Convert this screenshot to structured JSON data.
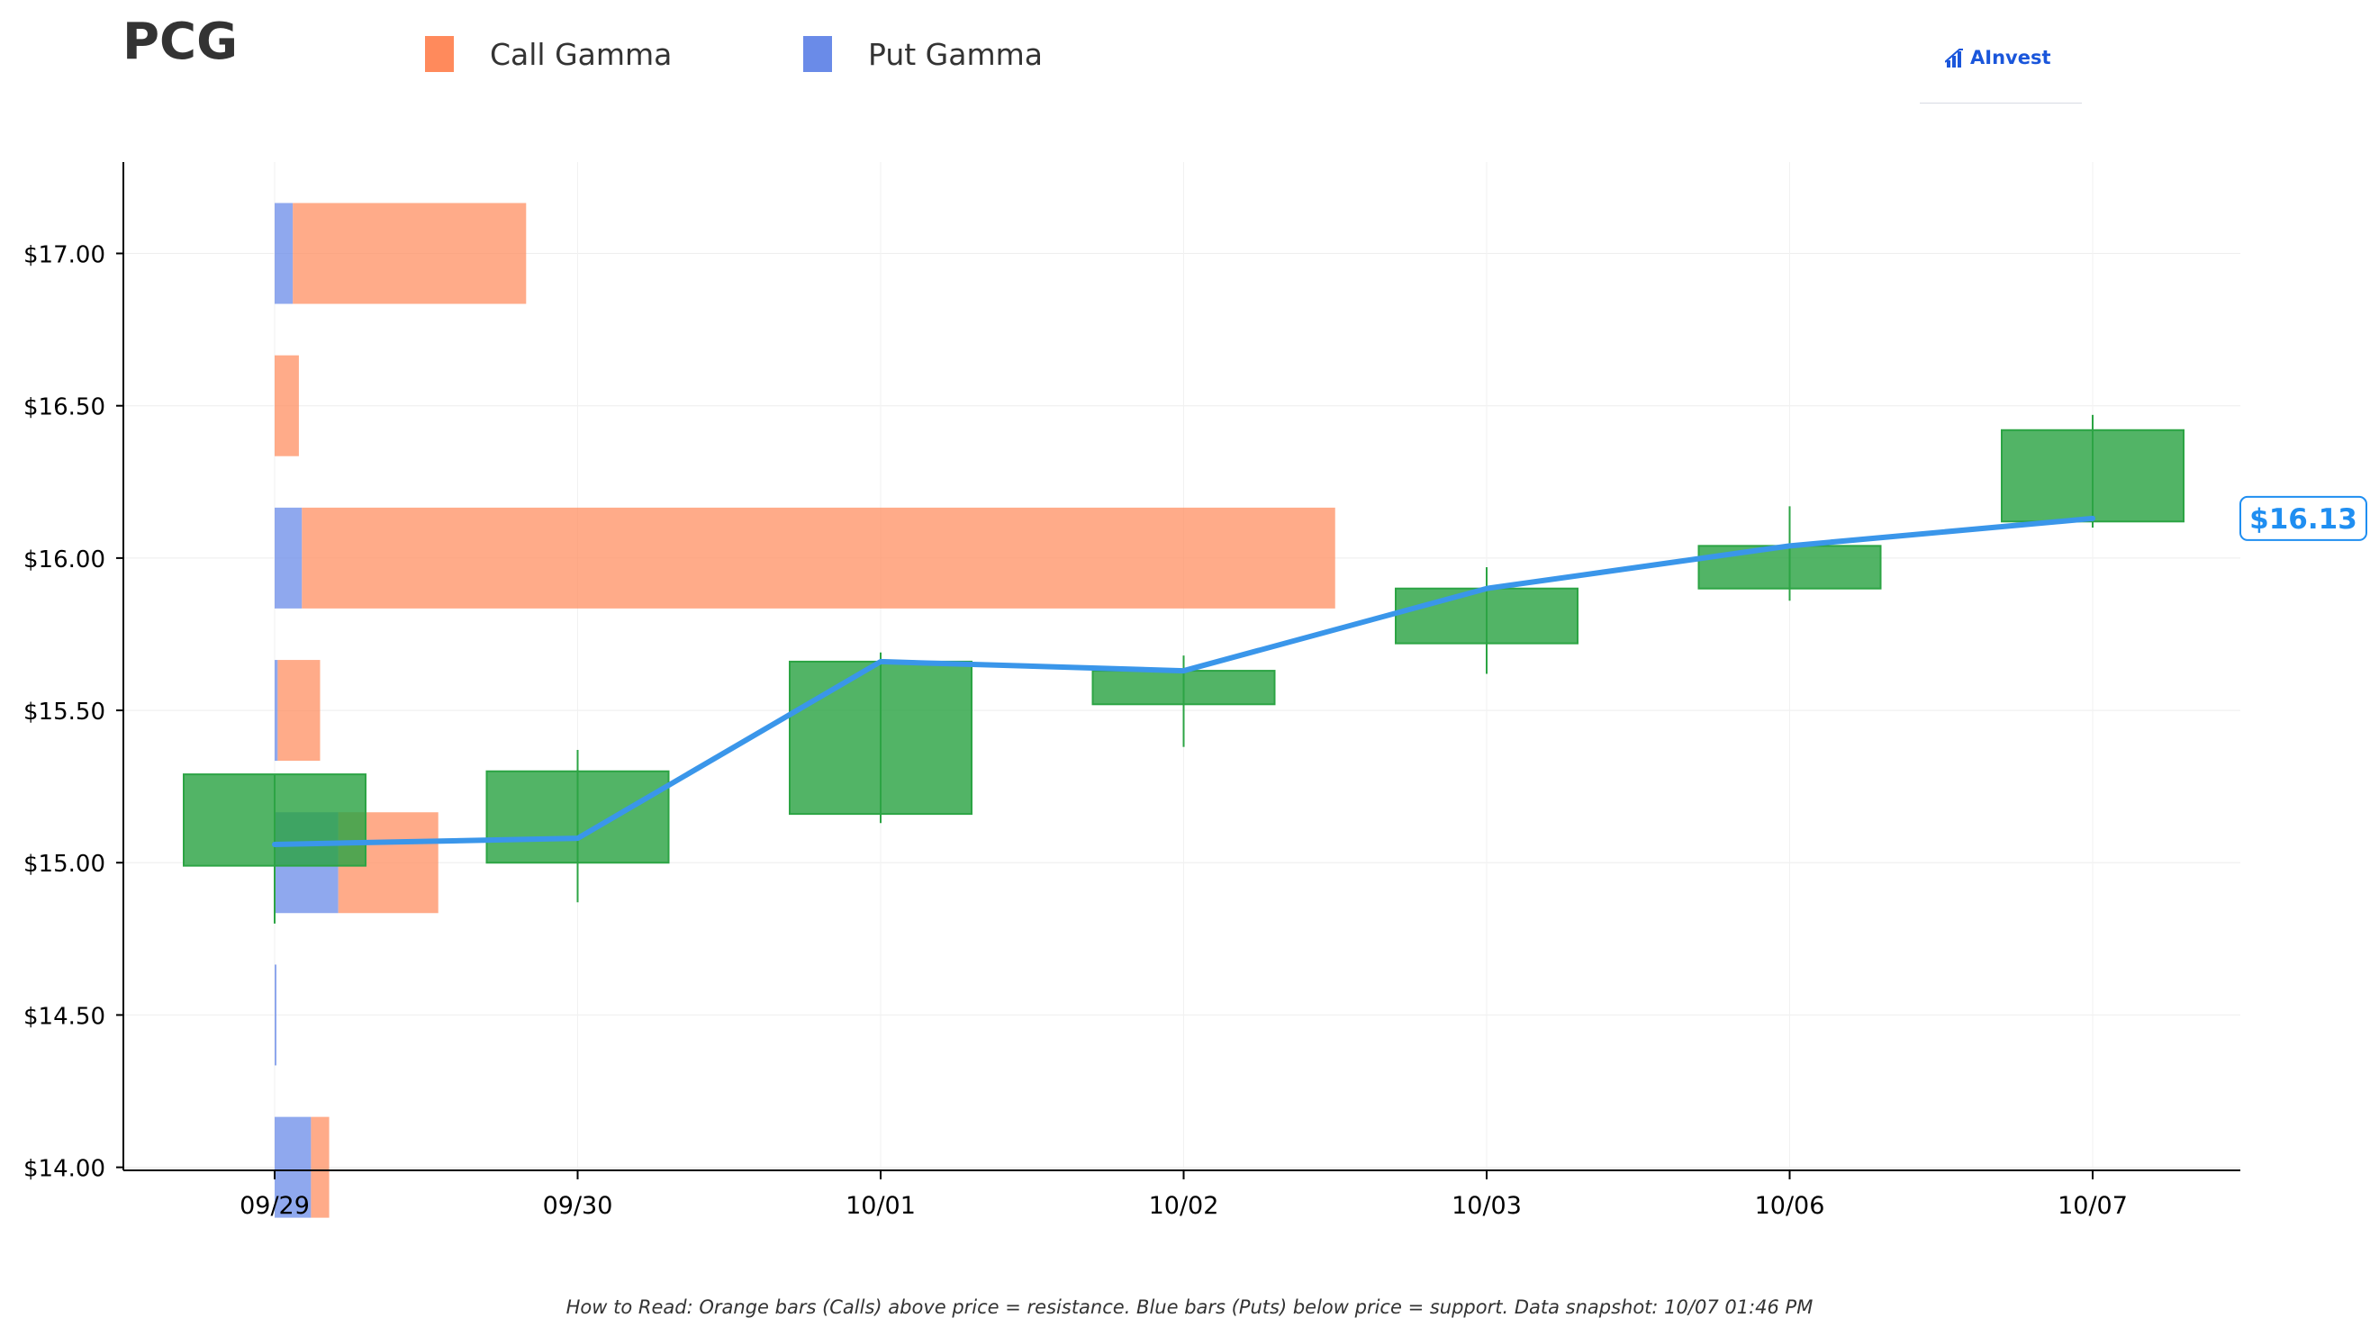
{
  "header": {
    "ticker": "PCG",
    "brand": "AInvest"
  },
  "legend": [
    {
      "label": "Call Gamma",
      "color": "#ff8a5c"
    },
    {
      "label": "Put Gamma",
      "color": "#6a8be8"
    }
  ],
  "footnote": "How to Read: Orange bars (Calls) above price = resistance. Blue bars (Puts) below price = support. Data snapshot: 10/07 01:46 PM",
  "colors": {
    "call": "#ff8a5c",
    "put": "#6a8be8",
    "candle": "#2ca444",
    "price_line": "#3a96ea",
    "price_tag": "#1f8ef1"
  },
  "chart_data": {
    "type": "candlestick",
    "categories": [
      "09/29",
      "09/30",
      "10/01",
      "10/02",
      "10/03",
      "10/06",
      "10/07"
    ],
    "ylim": [
      13.99,
      17.3
    ],
    "yticks": [
      14.0,
      14.5,
      15.0,
      15.5,
      16.0,
      16.5,
      17.0
    ],
    "ytick_labels": [
      "$14.00",
      "$14.50",
      "$15.00",
      "$15.50",
      "$16.00",
      "$16.50",
      "$17.00"
    ],
    "candles": [
      {
        "date": "09/29",
        "open": 14.99,
        "close": 15.29,
        "high": 15.29,
        "low": 14.8
      },
      {
        "date": "09/30",
        "open": 15.0,
        "close": 15.3,
        "high": 15.37,
        "low": 14.87
      },
      {
        "date": "10/01",
        "open": 15.16,
        "close": 15.66,
        "high": 15.69,
        "low": 15.13
      },
      {
        "date": "10/02",
        "open": 15.52,
        "close": 15.63,
        "high": 15.68,
        "low": 15.38
      },
      {
        "date": "10/03",
        "open": 15.72,
        "close": 15.9,
        "high": 15.97,
        "low": 15.62
      },
      {
        "date": "10/06",
        "open": 15.9,
        "close": 16.04,
        "high": 16.17,
        "low": 15.86
      },
      {
        "date": "10/07",
        "open": 16.12,
        "close": 16.42,
        "high": 16.47,
        "low": 16.1
      }
    ],
    "price_line": {
      "x": [
        "09/29",
        "09/30",
        "10/01",
        "10/02",
        "10/03",
        "10/06",
        "10/07"
      ],
      "y": [
        15.06,
        15.08,
        15.66,
        15.63,
        15.9,
        16.04,
        16.13
      ]
    },
    "last_price_label": "$16.13",
    "last_price": 16.13,
    "gamma_profile": {
      "unit": "category widths from 09/29",
      "levels": [
        {
          "strike": 17.0,
          "put": 0.06,
          "call": 0.77
        },
        {
          "strike": 16.5,
          "put": 0.0,
          "call": 0.08
        },
        {
          "strike": 16.0,
          "put": 0.09,
          "call": 3.41
        },
        {
          "strike": 15.5,
          "put": 0.01,
          "call": 0.14
        },
        {
          "strike": 15.0,
          "put": 0.21,
          "call": 0.33
        },
        {
          "strike": 14.5,
          "put": 0.005,
          "call": 0.0
        },
        {
          "strike": 14.0,
          "put": 0.12,
          "call": 0.06
        }
      ]
    },
    "grid": true,
    "legend_position": "top"
  }
}
